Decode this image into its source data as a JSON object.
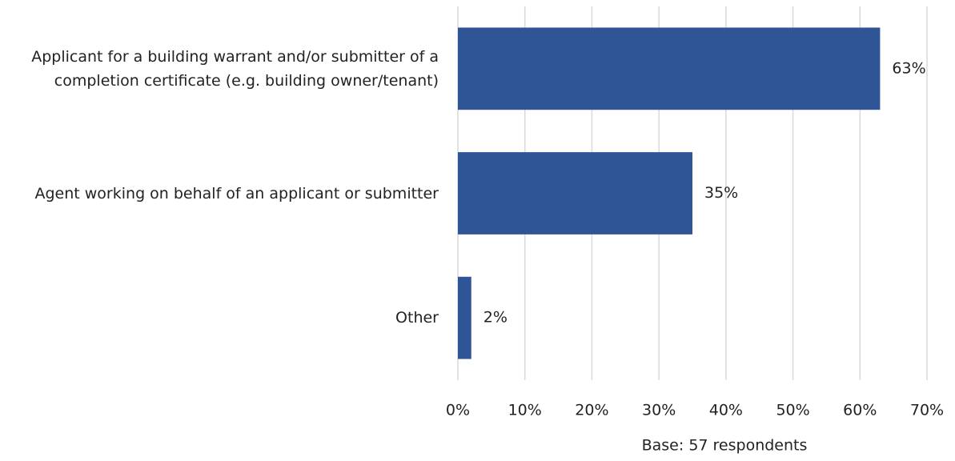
{
  "chart_data": {
    "type": "barh",
    "categories": [
      "Applicant for a building warrant and/or submitter of a completion certificate (e.g. building owner/tenant)",
      "Agent working on behalf of an applicant or submitter",
      "Other"
    ],
    "values": [
      63,
      35,
      2
    ],
    "value_labels": [
      "63%",
      "35%",
      "2%"
    ],
    "color": "#2f5597",
    "xlim": [
      0,
      70
    ],
    "xticks": [
      {
        "value": 0,
        "label": "0%"
      },
      {
        "value": 10,
        "label": "10%"
      },
      {
        "value": 20,
        "label": "20%"
      },
      {
        "value": 30,
        "label": "30%"
      },
      {
        "value": 40,
        "label": "40%"
      },
      {
        "value": 50,
        "label": "50%"
      },
      {
        "value": 60,
        "label": "60%"
      },
      {
        "value": 70,
        "label": "70%"
      }
    ],
    "grid": true,
    "xlabel": "Base: 57 respondents"
  }
}
